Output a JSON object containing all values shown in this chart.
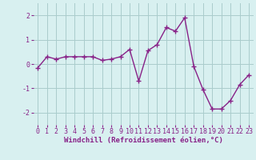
{
  "x": [
    0,
    1,
    2,
    3,
    4,
    5,
    6,
    7,
    8,
    9,
    10,
    11,
    12,
    13,
    14,
    15,
    16,
    17,
    18,
    19,
    20,
    21,
    22,
    23
  ],
  "y": [
    -0.15,
    0.3,
    0.2,
    0.3,
    0.3,
    0.3,
    0.3,
    0.15,
    0.2,
    0.3,
    0.6,
    -0.7,
    0.55,
    0.8,
    1.5,
    1.35,
    1.9,
    -0.1,
    -1.05,
    -1.85,
    -1.85,
    -1.5,
    -0.85,
    -0.45
  ],
  "line_color": "#882288",
  "marker": "+",
  "marker_size": 4,
  "linewidth": 1.0,
  "xlabel": "Windchill (Refroidissement éolien,°C)",
  "xlim": [
    -0.5,
    23.5
  ],
  "ylim": [
    -2.5,
    2.5
  ],
  "yticks": [
    -2,
    -1,
    0,
    1,
    2
  ],
  "xtick_labels": [
    "0",
    "1",
    "2",
    "3",
    "4",
    "5",
    "6",
    "7",
    "8",
    "9",
    "10",
    "11",
    "12",
    "13",
    "14",
    "15",
    "16",
    "17",
    "18",
    "19",
    "20",
    "21",
    "22",
    "23"
  ],
  "bg_color": "#d8f0f0",
  "grid_color": "#aacccc",
  "tick_color": "#882288",
  "label_color": "#882288",
  "xlabel_fontsize": 6.5,
  "tick_fontsize": 6.0
}
